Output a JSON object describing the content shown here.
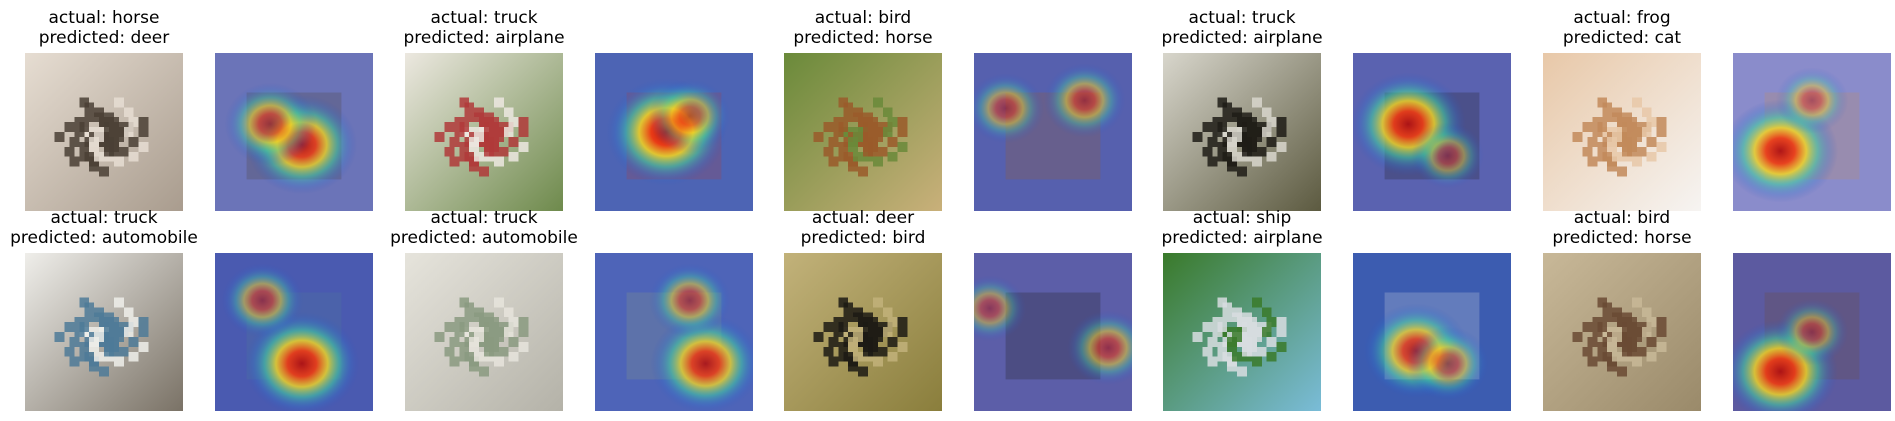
{
  "figure": {
    "rows": [
      [
        {
          "actual": "actual: horse",
          "predicted": "predicted: deer",
          "photo": {
            "bg": "#a99c8e",
            "fg": "#4a3f35",
            "accent": "#e6ddd2"
          },
          "heat": {
            "base": "#6b74b8",
            "hot": [
              [
                0.55,
                0.58,
                0.9
              ],
              [
                0.35,
                0.45,
                0.7
              ]
            ]
          }
        },
        {
          "actual": "actual: truck",
          "predicted": "predicted: airplane",
          "photo": {
            "bg": "#6e8a4c",
            "fg": "#b03a3a",
            "accent": "#ece8e0"
          },
          "heat": {
            "base": "#4d64b4",
            "hot": [
              [
                0.45,
                0.5,
                1.0
              ],
              [
                0.6,
                0.4,
                0.6
              ]
            ]
          }
        },
        {
          "actual": "actual: bird",
          "predicted": "predicted: horse",
          "photo": {
            "bg": "#c9b07a",
            "fg": "#9a5a2a",
            "accent": "#6a8a3a"
          },
          "heat": {
            "base": "#5660ae",
            "hot": [
              [
                0.7,
                0.3,
                0.6
              ],
              [
                0.2,
                0.35,
                0.55
              ]
            ]
          }
        },
        {
          "actual": "actual: truck",
          "predicted": "predicted: airplane",
          "photo": {
            "bg": "#5c5a40",
            "fg": "#1e1c16",
            "accent": "#d8d6cc"
          },
          "heat": {
            "base": "#5a62b0",
            "hot": [
              [
                0.35,
                0.45,
                0.95
              ],
              [
                0.6,
                0.65,
                0.5
              ]
            ]
          }
        },
        {
          "actual": "actual: frog",
          "predicted": "predicted: cat",
          "photo": {
            "bg": "#f6f4f2",
            "fg": "#c28a5a",
            "accent": "#e8c8a8"
          },
          "heat": {
            "base": "#8a8ccb",
            "hot": [
              [
                0.3,
                0.62,
                0.95
              ],
              [
                0.5,
                0.3,
                0.5
              ]
            ]
          }
        }
      ],
      [
        {
          "actual": "actual: truck",
          "predicted": "predicted: automobile",
          "photo": {
            "bg": "#7a7266",
            "fg": "#4e7a98",
            "accent": "#efeeea"
          },
          "heat": {
            "base": "#4a5ab0",
            "hot": [
              [
                0.55,
                0.7,
                0.95
              ],
              [
                0.3,
                0.3,
                0.6
              ]
            ]
          }
        },
        {
          "actual": "actual: truck",
          "predicted": "predicted: automobile",
          "photo": {
            "bg": "#b4b2a8",
            "fg": "#8a9a80",
            "accent": "#e6e4dc"
          },
          "heat": {
            "base": "#4e64b8",
            "hot": [
              [
                0.7,
                0.7,
                0.9
              ],
              [
                0.6,
                0.3,
                0.6
              ]
            ]
          }
        },
        {
          "actual": "actual: deer",
          "predicted": "predicted: bird",
          "photo": {
            "bg": "#8a7e3c",
            "fg": "#1c1a14",
            "accent": "#c2b27a"
          },
          "heat": {
            "base": "#5c5ea8",
            "hot": [
              [
                0.85,
                0.6,
                0.6
              ],
              [
                0.1,
                0.35,
                0.5
              ]
            ]
          }
        },
        {
          "actual": "actual: ship",
          "predicted": "predicted: airplane",
          "photo": {
            "bg": "#7abcd8",
            "fg": "#d8dde0",
            "accent": "#3a7a2a"
          },
          "heat": {
            "base": "#3c5cb0",
            "hot": [
              [
                0.4,
                0.62,
                0.85
              ],
              [
                0.6,
                0.7,
                0.6
              ]
            ]
          }
        },
        {
          "actual": "actual: bird",
          "predicted": "predicted: horse",
          "photo": {
            "bg": "#9a8a6a",
            "fg": "#6a4a34",
            "accent": "#c8b898"
          },
          "heat": {
            "base": "#5c5aa0",
            "hot": [
              [
                0.3,
                0.75,
                0.95
              ],
              [
                0.5,
                0.5,
                0.5
              ]
            ]
          }
        }
      ]
    ]
  }
}
